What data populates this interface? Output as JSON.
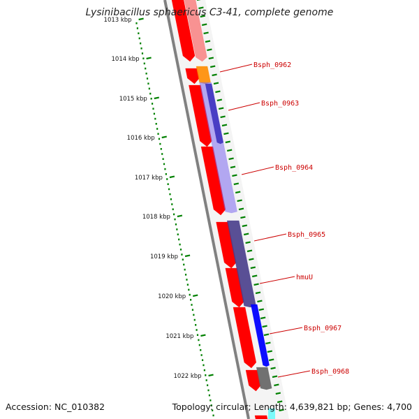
{
  "header": {
    "title": "Lysinibacillus sphaericus C3-41, complete genome"
  },
  "footer": {
    "accession": "Accession: NC_010382",
    "summary": "Topology: circular; Length: 4,639,821 bp; Genes: 4,700"
  },
  "ruler": {
    "ticks": [
      "1013 kbp",
      "1014 kbp",
      "1015 kbp",
      "1016 kbp",
      "1017 kbp",
      "1018 kbp",
      "1019 kbp",
      "1020 kbp",
      "1021 kbp",
      "1022 kbp"
    ]
  },
  "genes": [
    {
      "label": "Bsph_0962",
      "color": "#ff8c00"
    },
    {
      "label": "Bsph_0963",
      "color": "#00008b"
    },
    {
      "label": "Bsph_0964",
      "color": "#7b68ee"
    },
    {
      "label": "Bsph_0965",
      "color": "#483d8b"
    },
    {
      "label": "hmuU",
      "color": "#483d8b"
    },
    {
      "label": "Bsph_0967",
      "color": "#0000ff"
    },
    {
      "label": "Bsph_0968",
      "color": "#696969"
    }
  ],
  "colors": {
    "cds": "#ff0000",
    "backbone": "#808080",
    "ruler": "#008000",
    "label": "#cc0000"
  }
}
